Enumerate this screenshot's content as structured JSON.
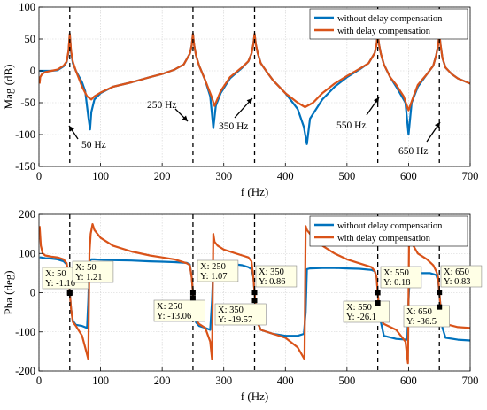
{
  "chart_data": [
    {
      "type": "line",
      "xlabel": "f  (Hz)",
      "ylabel": "Mag  (dB)",
      "xlim": [
        0,
        700
      ],
      "ylim": [
        -150,
        100
      ],
      "xticks": [
        "0",
        "100",
        "200",
        "300",
        "400",
        "500",
        "600",
        "700"
      ],
      "yticks": [
        "-150",
        "-100",
        "-50",
        "0",
        "50",
        "100"
      ],
      "grid": true,
      "legend_position": "top-right",
      "colors": {
        "without": "#0072BD",
        "with": "#D95319"
      },
      "legend": [
        "without delay compensation",
        "with delay compensation"
      ],
      "dashed_verticals_x": [
        50,
        250,
        350,
        550,
        650
      ],
      "annotations": [
        "50 Hz",
        "250 Hz",
        "350 Hz",
        "550 Hz",
        "650 Hz"
      ],
      "series": [
        {
          "name": "without delay compensation",
          "x": [
            1,
            2,
            5,
            10,
            20,
            30,
            40,
            45,
            48,
            50,
            52,
            55,
            60,
            70,
            75,
            80,
            83,
            85,
            90,
            100,
            120,
            150,
            180,
            200,
            220,
            235,
            245,
            248,
            250,
            252,
            255,
            260,
            270,
            278,
            283,
            287,
            295,
            310,
            330,
            340,
            345,
            348,
            350,
            352,
            355,
            360,
            370,
            380,
            400,
            420,
            430,
            435,
            440,
            460,
            480,
            500,
            520,
            535,
            545,
            548,
            550,
            552,
            555,
            560,
            570,
            580,
            595,
            600,
            605,
            615,
            630,
            640,
            645,
            648,
            650,
            652,
            655,
            660,
            670,
            680,
            700
          ],
          "y": [
            0,
            0,
            0,
            0,
            0,
            1,
            7,
            14,
            30,
            58,
            30,
            12,
            0,
            -18,
            -32,
            -72,
            -92,
            -65,
            -45,
            -35,
            -25,
            -18,
            -10,
            -5,
            2,
            10,
            27,
            40,
            58,
            40,
            24,
            8,
            -15,
            -40,
            -90,
            -55,
            -35,
            -12,
            5,
            15,
            27,
            42,
            58,
            42,
            28,
            12,
            -2,
            -15,
            -35,
            -60,
            -88,
            -115,
            -75,
            -45,
            -25,
            -10,
            2,
            12,
            28,
            42,
            58,
            42,
            27,
            10,
            -10,
            -25,
            -50,
            -100,
            -50,
            -25,
            -5,
            8,
            25,
            40,
            58,
            40,
            20,
            5,
            -5,
            -12,
            -20
          ]
        },
        {
          "name": "with delay compensation",
          "x": [
            1,
            2,
            5,
            10,
            20,
            30,
            40,
            45,
            48,
            50,
            52,
            55,
            60,
            70,
            78,
            85,
            90,
            100,
            120,
            150,
            180,
            200,
            220,
            235,
            245,
            248,
            250,
            252,
            255,
            260,
            270,
            280,
            285,
            295,
            310,
            330,
            340,
            345,
            348,
            350,
            352,
            355,
            360,
            370,
            380,
            400,
            420,
            432,
            445,
            460,
            480,
            500,
            520,
            535,
            545,
            548,
            550,
            552,
            555,
            560,
            570,
            580,
            592,
            600,
            608,
            615,
            630,
            640,
            645,
            648,
            650,
            652,
            655,
            660,
            670,
            680,
            700
          ],
          "y": [
            -20,
            -10,
            -5,
            -2,
            0,
            2,
            8,
            15,
            32,
            58,
            32,
            14,
            0,
            -25,
            -40,
            -45,
            -40,
            -34,
            -25,
            -18,
            -10,
            -5,
            2,
            10,
            27,
            40,
            58,
            40,
            24,
            8,
            -15,
            -40,
            -55,
            -32,
            -10,
            6,
            15,
            27,
            42,
            58,
            42,
            28,
            12,
            -2,
            -15,
            -35,
            -50,
            -57,
            -50,
            -35,
            -20,
            -8,
            3,
            12,
            28,
            42,
            58,
            42,
            27,
            10,
            -10,
            -22,
            -40,
            -62,
            -40,
            -22,
            -5,
            8,
            25,
            40,
            58,
            40,
            20,
            5,
            -5,
            -12,
            -20
          ]
        }
      ]
    },
    {
      "type": "line",
      "xlabel": "f  (Hz)",
      "ylabel": "Pha  (deg)",
      "xlim": [
        0,
        700
      ],
      "ylim": [
        -200,
        200
      ],
      "xticks": [
        "0",
        "100",
        "200",
        "300",
        "400",
        "500",
        "600",
        "700"
      ],
      "yticks": [
        "-200",
        "-100",
        "0",
        "100",
        "200"
      ],
      "grid": true,
      "legend_position": "top-right",
      "colors": {
        "without": "#0072BD",
        "with": "#D95319"
      },
      "legend": [
        "without delay compensation",
        "with delay compensation"
      ],
      "dashed_verticals_x": [
        50,
        250,
        350,
        550,
        650
      ],
      "datatips": [
        {
          "x": 50,
          "y": -1.16,
          "lx": "X: 50",
          "ly": "Y: -1.16"
        },
        {
          "x": 50,
          "y": 1.21,
          "lx": "X: 50",
          "ly": "Y: 1.21"
        },
        {
          "x": 250,
          "y": -13.06,
          "lx": "X: 250",
          "ly": "Y: -13.06"
        },
        {
          "x": 250,
          "y": 1.07,
          "lx": "X: 250",
          "ly": "Y: 1.07"
        },
        {
          "x": 350,
          "y": -19.57,
          "lx": "X: 350",
          "ly": "Y: -19.57"
        },
        {
          "x": 350,
          "y": 0.86,
          "lx": "X: 350",
          "ly": "Y: 0.86"
        },
        {
          "x": 550,
          "y": -26.1,
          "lx": "X: 550",
          "ly": "Y: -26.1"
        },
        {
          "x": 550,
          "y": 0.18,
          "lx": "X: 550",
          "ly": "Y: 0.18"
        },
        {
          "x": 650,
          "y": -36.5,
          "lx": "X: 650",
          "ly": "Y: -36.5"
        },
        {
          "x": 650,
          "y": 0.83,
          "lx": "X: 650",
          "ly": "Y: 0.83"
        }
      ],
      "series": [
        {
          "name": "without delay compensation",
          "x": [
            1,
            3,
            10,
            20,
            30,
            40,
            45,
            48,
            50,
            52,
            55,
            60,
            70,
            78,
            80,
            82,
            85,
            90,
            100,
            120,
            150,
            180,
            200,
            220,
            240,
            245,
            248,
            250,
            252,
            255,
            260,
            270,
            278,
            281,
            283,
            285,
            290,
            300,
            320,
            330,
            340,
            345,
            348,
            350,
            352,
            355,
            360,
            380,
            400,
            420,
            430,
            433,
            435,
            440,
            460,
            480,
            500,
            520,
            540,
            545,
            548,
            550,
            552,
            555,
            560,
            580,
            598,
            600,
            602,
            605,
            620,
            635,
            645,
            648,
            650,
            652,
            655,
            660,
            680,
            700
          ],
          "y": [
            90,
            90,
            88,
            87,
            85,
            80,
            72,
            40,
            0,
            -40,
            -72,
            -82,
            -85,
            -90,
            -20,
            80,
            85,
            85,
            84,
            83,
            82,
            80,
            79,
            78,
            76,
            72,
            40,
            0,
            -40,
            -76,
            -85,
            -90,
            -95,
            -20,
            65,
            72,
            75,
            74,
            72,
            70,
            65,
            60,
            40,
            0,
            -40,
            -75,
            -95,
            -105,
            -110,
            -110,
            -105,
            -50,
            60,
            62,
            63,
            63,
            62,
            61,
            58,
            55,
            40,
            0,
            -40,
            -75,
            -110,
            -118,
            -120,
            -20,
            45,
            48,
            50,
            50,
            45,
            30,
            0,
            -40,
            -90,
            -115,
            -120,
            -122
          ]
        },
        {
          "name": "with delay compensation",
          "x": [
            1,
            3,
            6,
            10,
            20,
            30,
            40,
            45,
            48,
            50,
            52,
            55,
            60,
            70,
            75,
            80,
            82,
            84,
            87,
            90,
            100,
            120,
            150,
            180,
            200,
            220,
            240,
            245,
            248,
            250,
            252,
            255,
            260,
            270,
            278,
            281,
            283,
            285,
            290,
            300,
            320,
            330,
            340,
            345,
            348,
            350,
            352,
            355,
            360,
            380,
            400,
            420,
            431,
            433,
            435,
            440,
            460,
            480,
            500,
            520,
            540,
            545,
            548,
            550,
            552,
            555,
            560,
            580,
            595,
            599,
            601,
            604,
            615,
            630,
            640,
            645,
            648,
            650,
            652,
            655,
            660,
            680,
            700
          ],
          "y": [
            170,
            120,
            100,
            95,
            92,
            90,
            85,
            75,
            40,
            0,
            -40,
            -75,
            -85,
            -110,
            -140,
            -170,
            100,
            150,
            175,
            160,
            140,
            120,
            105,
            95,
            90,
            85,
            75,
            70,
            40,
            0,
            -40,
            -70,
            -80,
            -90,
            -125,
            -170,
            150,
            130,
            120,
            110,
            100,
            95,
            90,
            80,
            40,
            0,
            -40,
            -78,
            -95,
            -105,
            -115,
            -140,
            -170,
            170,
            160,
            150,
            120,
            100,
            85,
            75,
            65,
            55,
            40,
            0,
            -40,
            -70,
            -80,
            -95,
            -125,
            -180,
            170,
            130,
            100,
            85,
            70,
            55,
            40,
            0,
            -40,
            -70,
            -80,
            -88,
            -90
          ]
        }
      ]
    }
  ]
}
